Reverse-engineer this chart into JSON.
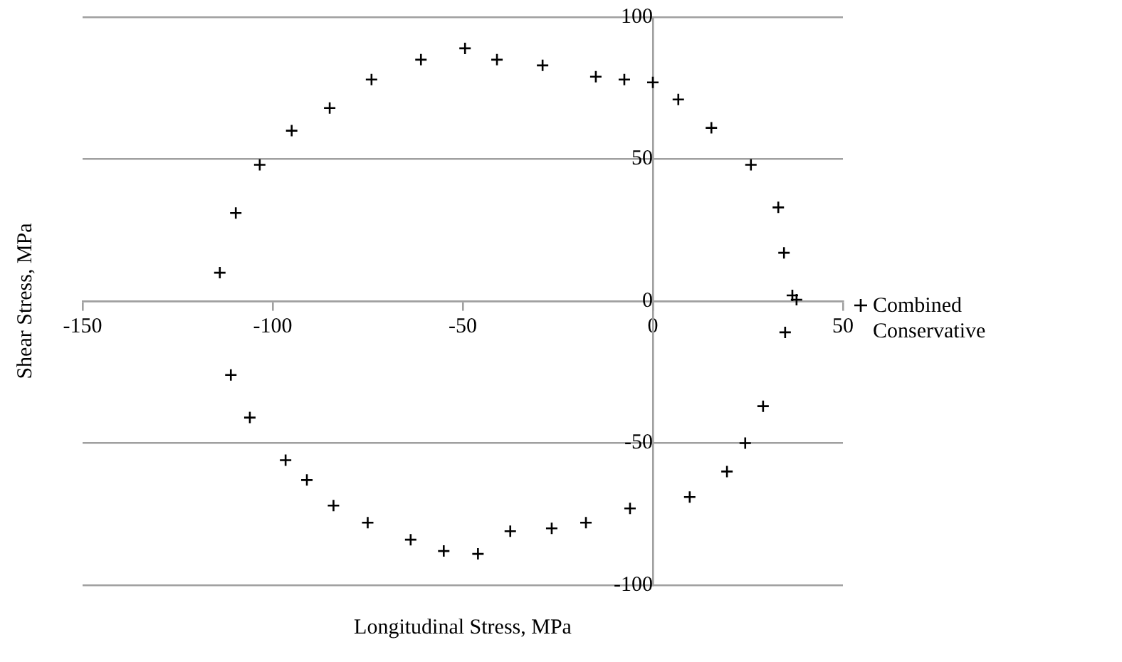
{
  "chart_data": {
    "type": "scatter",
    "xlabel": "Longitudinal Stress, MPa",
    "ylabel": "Shear Stress, MPa",
    "xlim": [
      -150,
      50
    ],
    "xticks": [
      -150,
      -100,
      -50,
      0,
      50
    ],
    "ylim": [
      -100,
      100
    ],
    "yticks": [
      -100,
      -50,
      0,
      50,
      100
    ],
    "grid": "y",
    "legend": "right",
    "marker": "cross",
    "series": [
      {
        "name": "Combined Conservative",
        "color": "#000000",
        "x": [
          -113.9,
          -109.7,
          -103.4,
          -95,
          -85,
          -74,
          -61,
          -49.4,
          -41,
          -29,
          -15,
          -7.5,
          0,
          6.7,
          15.4,
          25.8,
          33,
          34.5,
          36.7,
          37.8,
          34.8,
          29,
          24.3,
          19.5,
          9.7,
          -6,
          -17.6,
          -26.6,
          -37.5,
          -46,
          -55,
          -63.7,
          -75,
          -84,
          -91,
          -96.6,
          -106,
          -111
        ],
        "values": [
          10,
          31,
          48,
          60,
          68,
          78,
          85,
          89,
          85,
          83,
          79,
          78,
          77,
          71,
          61,
          48,
          33,
          17,
          2,
          0.5,
          -11,
          -37,
          -50,
          -60,
          -69,
          -73,
          -78,
          -80,
          -81,
          -89,
          -88,
          -84,
          -78,
          -72,
          -63,
          -56,
          -41,
          -26
        ]
      }
    ]
  }
}
